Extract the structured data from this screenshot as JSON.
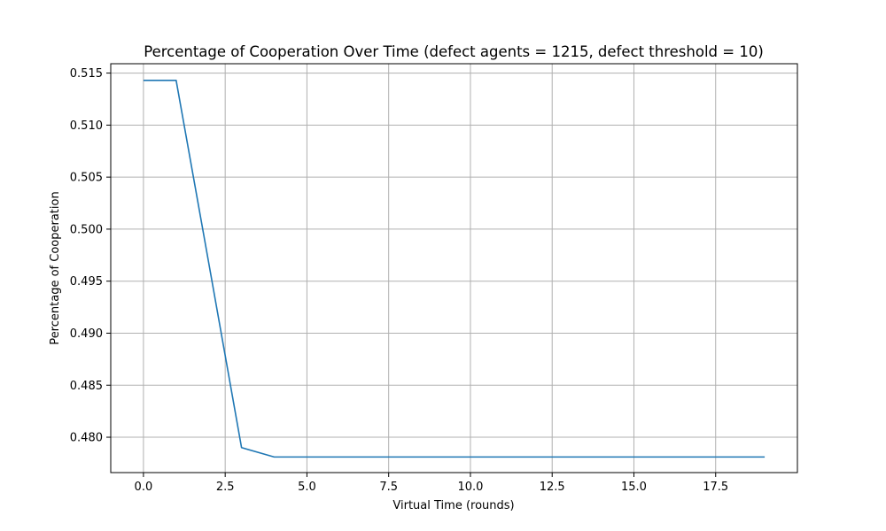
{
  "chart_data": {
    "type": "line",
    "title": "Percentage of Cooperation Over Time (defect agents = 1215, defect threshold = 10)",
    "xlabel": "Virtual Time (rounds)",
    "ylabel": "Percentage of Cooperation",
    "xlim": [
      -1.0,
      20.0
    ],
    "ylim": [
      0.4766,
      0.5159
    ],
    "x_ticks": [
      0.0,
      2.5,
      5.0,
      7.5,
      10.0,
      12.5,
      15.0,
      17.5
    ],
    "x_tick_labels": [
      "0.0",
      "2.5",
      "5.0",
      "7.5",
      "10.0",
      "12.5",
      "15.0",
      "17.5"
    ],
    "y_ticks": [
      0.48,
      0.485,
      0.49,
      0.495,
      0.5,
      0.505,
      0.51,
      0.515
    ],
    "y_tick_labels": [
      "0.480",
      "0.485",
      "0.490",
      "0.495",
      "0.500",
      "0.505",
      "0.510",
      "0.515"
    ],
    "grid": true,
    "series": [
      {
        "color": "#1f77b4",
        "x": [
          0,
          1,
          2,
          3,
          4,
          5,
          6,
          7,
          8,
          9,
          10,
          11,
          12,
          13,
          14,
          15,
          16,
          17,
          18,
          19
        ],
        "y": [
          0.5143,
          0.5143,
          0.4967,
          0.479,
          0.4781,
          0.4781,
          0.4781,
          0.4781,
          0.4781,
          0.4781,
          0.4781,
          0.4781,
          0.4781,
          0.4781,
          0.4781,
          0.4781,
          0.4781,
          0.4781,
          0.4781,
          0.4781
        ]
      }
    ]
  }
}
